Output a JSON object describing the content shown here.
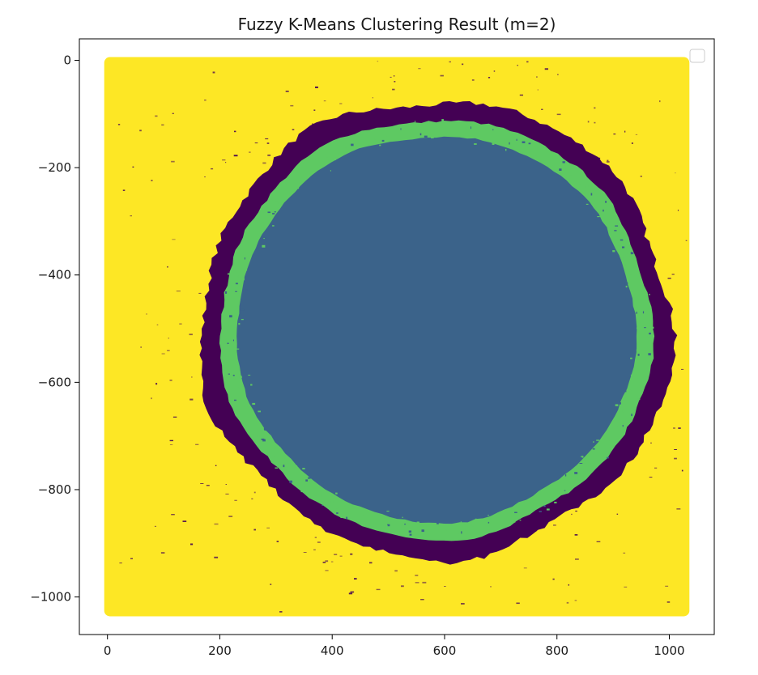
{
  "chart_data": {
    "type": "scatter",
    "title": "Fuzzy K-Means Clustering Result (m=2)",
    "xlabel": "",
    "ylabel": "",
    "xlim": [
      -50,
      1080
    ],
    "ylim": [
      -1070,
      40
    ],
    "x_ticks": [
      0,
      200,
      400,
      600,
      800,
      1000
    ],
    "y_ticks": [
      0,
      -200,
      -400,
      -600,
      -800,
      -1000
    ],
    "x_tick_labels": [
      "0",
      "200",
      "400",
      "600",
      "800",
      "1000"
    ],
    "y_tick_labels": [
      "0",
      "−200",
      "−400",
      "−600",
      "−800",
      "−1000"
    ],
    "grid": false,
    "legend": {
      "placement": "top-right",
      "entries": []
    },
    "point_extent": {
      "x": [
        0,
        1030
      ],
      "y": [
        -1030,
        0
      ]
    },
    "clusters": [
      {
        "name": "",
        "color": "#fde725",
        "region": "background square"
      },
      {
        "name": "",
        "color": "#440154",
        "region": "outer ring, roughly radius 420 around (585, -500)"
      },
      {
        "name": "",
        "color": "#5ec962",
        "region": "inner ring band, roughly radius 355-385 around (585, -500)"
      },
      {
        "name": "",
        "color": "#3b638a",
        "region": "central disc, roughly radius 355 around (585, -500)"
      }
    ],
    "disc": {
      "center": [
        585,
        -500
      ],
      "inner_radius": 355,
      "band_radius": 385,
      "outer_radius": 420
    }
  }
}
